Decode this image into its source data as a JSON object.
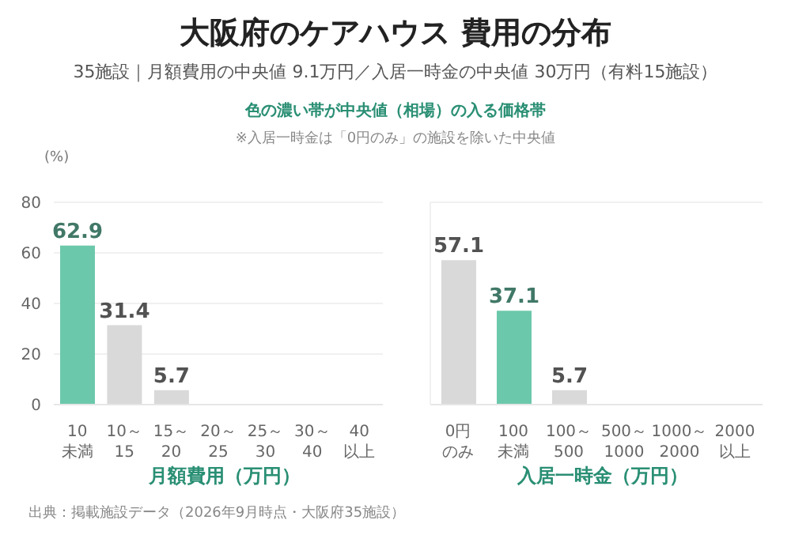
{
  "chart_data": [
    {
      "type": "bar",
      "title": "大阪府のケアハウス 費用の分布",
      "subtitle": "35施設｜月額費用の中央値 9.1万円／入居一時金の中央値 30万円（有料15施設）",
      "annotations": [
        "色の濃い帯が中央値（相場）の入る価格帯",
        "※入居一時金は「0円のみ」の施設を除いた中央値",
        "出典：掲載施設データ（2026年9月時点・大阪府35施設）"
      ],
      "ylabel": "(%)",
      "xlabel": "月額費用（万円）",
      "categories": [
        "10 未満",
        "10～ 15",
        "15～ 20",
        "20～ 25",
        "25～ 30",
        "30～ 40",
        "40 以上"
      ],
      "values": [
        62.9,
        31.4,
        5.7,
        0,
        0,
        0,
        0
      ],
      "value_labels": [
        "62.9",
        "31.4",
        "5.7",
        null,
        null,
        null,
        null
      ],
      "colors": [
        "#6cc8ab",
        "#d9d9d9",
        "#d9d9d9",
        "#d9d9d9",
        "#d9d9d9",
        "#d9d9d9",
        "#d9d9d9"
      ],
      "ylim": [
        0,
        80
      ],
      "yticks": [
        0,
        20,
        40,
        60,
        80
      ],
      "grid": "y"
    },
    {
      "type": "bar",
      "xlabel": "入居一時金（万円）",
      "categories": [
        "0円のみ",
        "100 未満",
        "100～ 500",
        "500～ 1000",
        "1000～ 2000",
        "2000 以上"
      ],
      "values": [
        57.1,
        37.1,
        5.7,
        0,
        0,
        0
      ],
      "value_labels": [
        "57.1",
        "37.1",
        "5.7",
        null,
        null,
        null
      ],
      "colors": [
        "#d9d9d9",
        "#6cc8ab",
        "#d9d9d9",
        "#d9d9d9",
        "#d9d9d9",
        "#d9d9d9"
      ],
      "ylim": [
        0,
        80
      ],
      "yticks": [
        0,
        20,
        40,
        60,
        80
      ],
      "grid": "y",
      "tick_labels": "x"
    }
  ]
}
